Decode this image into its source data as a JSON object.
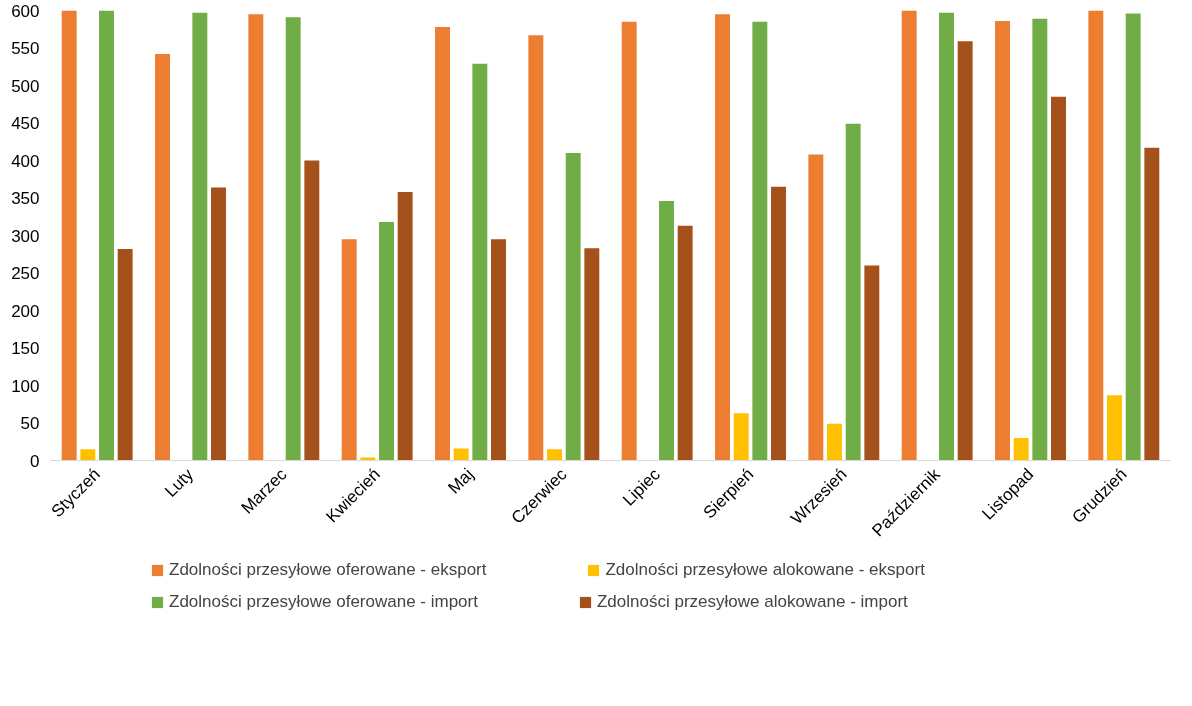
{
  "chart_data": {
    "type": "bar",
    "categories": [
      "Styczeń",
      "Luty",
      "Marzec",
      "Kwiecień",
      "Maj",
      "Czerwiec",
      "Lipiec",
      "Sierpień",
      "Wrzesień",
      "Październik",
      "Listopad",
      "Grudzień"
    ],
    "series": [
      {
        "name": "Zdolności przesyłowe oferowane - eksport",
        "color": "#ed7d31",
        "values": [
          600,
          542,
          595,
          295,
          578,
          567,
          585,
          595,
          408,
          600,
          586,
          600
        ]
      },
      {
        "name": "Zdolności przesyłowe alokowane - eksport",
        "color": "#ffc000",
        "values": [
          15,
          0,
          0,
          4,
          16,
          15,
          0,
          63,
          49,
          0,
          30,
          87
        ]
      },
      {
        "name": "Zdolności przesyłowe oferowane - import",
        "color": "#70ad47",
        "values": [
          600,
          597,
          591,
          318,
          529,
          410,
          346,
          585,
          449,
          597,
          589,
          596
        ]
      },
      {
        "name": "Zdolności przesyłowe alokowane - import",
        "color": "#a5511c",
        "values": [
          282,
          364,
          400,
          358,
          295,
          283,
          313,
          365,
          260,
          559,
          485,
          417
        ]
      }
    ],
    "ylim": [
      0,
      600
    ],
    "yticks": [
      0,
      50,
      100,
      150,
      200,
      250,
      300,
      350,
      400,
      450,
      500,
      550,
      600
    ],
    "grid": false,
    "legend": "bottom"
  }
}
